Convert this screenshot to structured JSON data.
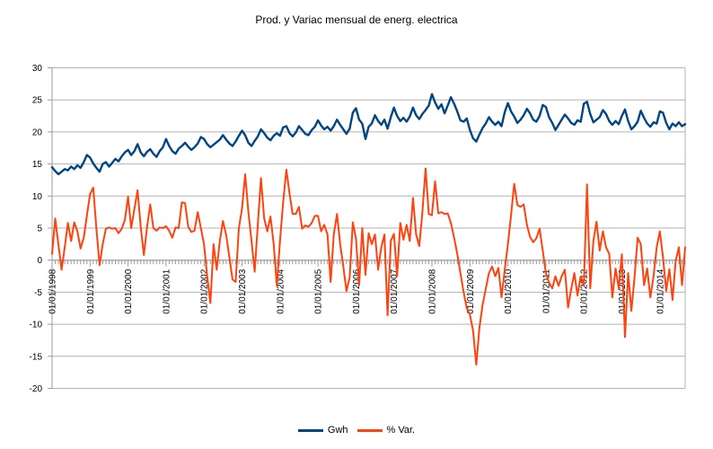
{
  "title": "Prod. y Variac mensual de energ. electrica",
  "legend": [
    {
      "label": "Gwh",
      "color": "#004586"
    },
    {
      "label": "% Var.",
      "color": "#FF420E"
    }
  ],
  "axes": {
    "y_tick_labels": [
      "30",
      "25",
      "20",
      "15",
      "10",
      "5",
      "0",
      "-5",
      "-10",
      "-15",
      "-20"
    ],
    "x_tick_labels": [
      "01/01/1998",
      "01/01/1999",
      "01/01/2000",
      "01/01/2001",
      "01/01/2002",
      "01/01/2003",
      "01/01/2004",
      "01/01/2005",
      "01/01/2006",
      "01/01/2007",
      "01/01/2008",
      "01/01/2009",
      "01/01/2010",
      "01/01/2011",
      "01/01/2012",
      "01/01/2013",
      "01/01/2014"
    ]
  },
  "chart_data": {
    "type": "line",
    "title": "Prod. y Variac mensual de energ. electrica",
    "xlabel": "",
    "ylabel": "",
    "x_interval": "monthly",
    "x_start": "01/01/1998",
    "x_end": "09/01/2014",
    "x_tick_labels": [
      "01/01/1998",
      "01/01/1999",
      "01/01/2000",
      "01/01/2001",
      "01/01/2002",
      "01/01/2003",
      "01/01/2004",
      "01/01/2005",
      "01/01/2006",
      "01/01/2007",
      "01/01/2008",
      "01/01/2009",
      "01/01/2010",
      "01/01/2011",
      "01/01/2012",
      "01/01/2013",
      "01/01/2014"
    ],
    "ylim": [
      -20,
      30
    ],
    "ytick_step": 5,
    "grid": "horizontal",
    "legend_position": "bottom",
    "series": [
      {
        "name": "Gwh",
        "color": "#004586",
        "values": [
          14.5,
          13.9,
          13.4,
          13.8,
          14.2,
          14.0,
          14.6,
          14.2,
          14.8,
          14.4,
          15.3,
          16.4,
          16.0,
          15.1,
          14.4,
          13.8,
          15.0,
          15.3,
          14.6,
          15.2,
          15.8,
          15.4,
          16.2,
          16.8,
          17.2,
          16.4,
          17.0,
          18.1,
          16.8,
          16.2,
          16.9,
          17.3,
          16.6,
          16.1,
          17.0,
          17.6,
          18.9,
          17.8,
          17.0,
          16.6,
          17.4,
          17.8,
          18.3,
          17.7,
          17.2,
          17.6,
          18.2,
          19.2,
          18.9,
          18.1,
          17.6,
          18.0,
          18.4,
          18.8,
          19.5,
          18.8,
          18.2,
          17.8,
          18.5,
          19.4,
          20.2,
          19.5,
          18.3,
          17.8,
          18.6,
          19.3,
          20.4,
          19.8,
          19.1,
          18.7,
          19.4,
          19.8,
          19.4,
          20.7,
          20.9,
          19.8,
          19.3,
          19.9,
          20.9,
          20.3,
          19.7,
          19.5,
          20.3,
          20.8,
          21.8,
          21.0,
          20.4,
          20.8,
          20.2,
          20.9,
          21.9,
          21.1,
          20.4,
          19.7,
          20.5,
          23.0,
          23.7,
          21.9,
          21.3,
          18.9,
          20.8,
          21.3,
          22.6,
          21.7,
          21.1,
          21.9,
          20.5,
          22.3,
          23.8,
          22.5,
          21.7,
          22.2,
          21.6,
          22.4,
          23.8,
          22.6,
          22.0,
          22.8,
          23.4,
          24.1,
          25.9,
          24.6,
          23.6,
          24.3,
          22.9,
          24.1,
          25.4,
          24.4,
          23.2,
          21.8,
          21.6,
          22.1,
          20.3,
          19.0,
          18.5,
          19.6,
          20.6,
          21.3,
          22.3,
          21.6,
          21.1,
          21.6,
          20.9,
          23.1,
          24.5,
          23.2,
          22.4,
          21.4,
          21.9,
          22.6,
          23.6,
          22.9,
          21.9,
          21.6,
          22.5,
          24.2,
          23.9,
          22.3,
          21.4,
          20.3,
          21.1,
          21.9,
          22.7,
          22.1,
          21.4,
          21.1,
          21.8,
          21.6,
          24.4,
          24.7,
          22.8,
          21.5,
          21.9,
          22.3,
          23.4,
          22.8,
          21.7,
          21.1,
          21.7,
          21.2,
          22.5,
          23.5,
          21.7,
          20.4,
          20.9,
          21.6,
          23.3,
          22.2,
          21.3,
          20.8,
          21.5,
          21.3,
          23.2,
          23.0,
          21.4,
          20.4,
          21.3,
          20.9,
          21.5,
          20.9,
          21.2
        ]
      },
      {
        "name": "% Var.",
        "color": "#FF420E",
        "values": [
          1.0,
          6.5,
          2.5,
          -1.5,
          2.0,
          5.8,
          3.0,
          5.9,
          4.5,
          1.8,
          3.5,
          7.0,
          10.3,
          11.3,
          5.0,
          -0.8,
          2.5,
          4.9,
          5.1,
          4.9,
          5.0,
          4.2,
          4.9,
          6.3,
          9.9,
          5.0,
          8.0,
          10.9,
          5.2,
          0.8,
          5.2,
          8.7,
          5.0,
          4.6,
          5.1,
          5.0,
          5.3,
          4.6,
          3.5,
          5.1,
          5.0,
          9.0,
          8.9,
          5.2,
          4.4,
          4.6,
          7.5,
          5.0,
          2.5,
          -2.5,
          -6.7,
          2.5,
          -1.5,
          3.0,
          6.1,
          3.9,
          0.5,
          -3.0,
          -3.4,
          5.0,
          8.0,
          13.4,
          7.5,
          3.0,
          -1.8,
          5.5,
          12.8,
          6.5,
          4.5,
          6.8,
          2.5,
          -4.0,
          3.0,
          9.0,
          14.1,
          10.4,
          7.2,
          7.2,
          8.3,
          4.9,
          5.4,
          5.2,
          5.8,
          6.9,
          6.9,
          4.5,
          5.5,
          4.0,
          -3.4,
          4.0,
          7.2,
          2.5,
          -1.0,
          -4.8,
          -2.7,
          5.9,
          3.4,
          -3.9,
          5.0,
          -2.3,
          4.2,
          2.5,
          4.0,
          -1.5,
          2.0,
          4.0,
          -8.6,
          3.0,
          4.1,
          -2.5,
          5.8,
          3.2,
          5.5,
          3.0,
          9.7,
          4.0,
          2.2,
          7.5,
          14.3,
          7.2,
          7.0,
          12.3,
          7.3,
          7.5,
          7.2,
          7.3,
          5.8,
          3.5,
          1.0,
          -2.0,
          -5.0,
          -7.5,
          -8.5,
          -11.0,
          -16.3,
          -10.5,
          -7.0,
          -4.5,
          -2.0,
          -1.0,
          -2.5,
          -1.2,
          -5.8,
          -1.5,
          2.5,
          7.0,
          11.9,
          8.6,
          8.3,
          8.7,
          5.5,
          3.6,
          2.8,
          3.4,
          4.9,
          1.5,
          -2.0,
          -3.5,
          -4.4,
          -2.5,
          -4.0,
          -2.5,
          -1.5,
          -7.4,
          -4.5,
          -2.0,
          -5.5,
          -2.5,
          -3.9,
          11.8,
          -4.4,
          3.0,
          6.0,
          1.5,
          4.5,
          2.0,
          1.0,
          -5.8,
          -1.3,
          -4.4,
          0.9,
          -12.0,
          -2.0,
          -7.9,
          -2.7,
          3.5,
          2.5,
          -3.9,
          -1.3,
          -5.8,
          -2.5,
          2.0,
          4.5,
          0.5,
          -4.8,
          -1.4,
          -6.2,
          -0.1,
          2.0,
          -3.9,
          2.0
        ]
      }
    ],
    "style": {
      "grid_color": "#b3b3b3",
      "axis_color": "#9a9a9a",
      "background": "#ffffff"
    }
  }
}
